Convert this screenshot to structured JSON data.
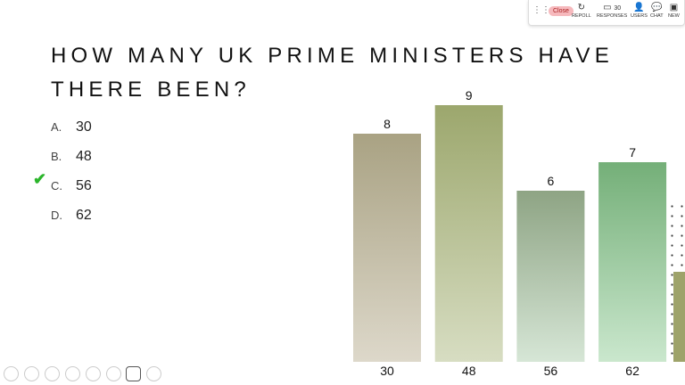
{
  "toolbar": {
    "close": "Close",
    "repoll": "REPOLL",
    "responses_count": "30",
    "responses": "RESPONSES",
    "users": "USERS",
    "chat": "CHAT",
    "new": "NEW"
  },
  "question": {
    "lines": [
      "HOW MANY UK PRIME MINISTERS HAVE",
      "THERE BEEN?"
    ],
    "options": [
      {
        "letter": "A.",
        "text": "30"
      },
      {
        "letter": "B.",
        "text": "48"
      },
      {
        "letter": "C.",
        "text": "56"
      },
      {
        "letter": "D.",
        "text": "62"
      }
    ],
    "correct": 2
  },
  "chart_data": {
    "type": "bar",
    "categories": [
      "30",
      "48",
      "56",
      "62"
    ],
    "values": [
      8,
      9,
      6,
      7
    ],
    "colors": [
      [
        "#a9a283",
        "#ddd8ca"
      ],
      [
        "#9ca76d",
        "#d7ddc2"
      ],
      [
        "#8ea484",
        "#d6e6d6"
      ],
      [
        "#74af78",
        "#cae7cd"
      ]
    ]
  }
}
